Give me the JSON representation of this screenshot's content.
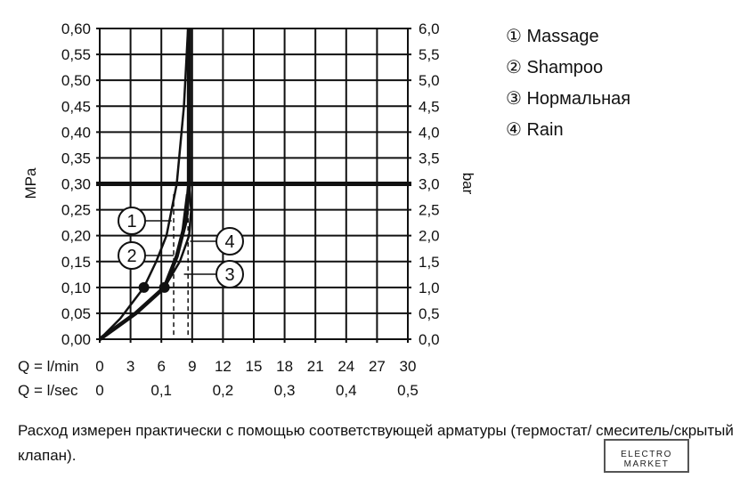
{
  "chart_data": {
    "type": "line",
    "ylabel_left": "MPa",
    "ylabel_right": "bar",
    "xlabel_lmin": "Q = l/min",
    "xlabel_lsec": "Q = l/sec",
    "xlim": [
      0,
      30
    ],
    "ylim": [
      0,
      0.6
    ],
    "x_ticks_lmin": [
      "0",
      "3",
      "6",
      "9",
      "12",
      "15",
      "18",
      "21",
      "24",
      "27",
      "30"
    ],
    "x_ticks_lsec": [
      "0",
      "0,1",
      "0,2",
      "0,3",
      "0,4",
      "0,5"
    ],
    "y_ticks_mpa": [
      "0,00",
      "0,05",
      "0,10",
      "0,15",
      "0,20",
      "0,25",
      "0,30",
      "0,35",
      "0,40",
      "0,45",
      "0,50",
      "0,55",
      "0,60"
    ],
    "y_ticks_bar": [
      "0,0",
      "0,5",
      "1,0",
      "1,5",
      "2,0",
      "2,5",
      "3,0",
      "3,5",
      "4,0",
      "4,5",
      "5,0",
      "5,5",
      "6,0"
    ],
    "grid": true,
    "reference_pressure_mpa": 0.3,
    "series": [
      {
        "name": "1",
        "points": [
          [
            0,
            0
          ],
          [
            2,
            0.04
          ],
          [
            4.3,
            0.1
          ],
          [
            5.5,
            0.15
          ],
          [
            6.5,
            0.2
          ],
          [
            7.5,
            0.3
          ],
          [
            8.2,
            0.45
          ],
          [
            8.6,
            0.6
          ]
        ]
      },
      {
        "name": "2",
        "points": [
          [
            0,
            0
          ],
          [
            3.5,
            0.05
          ],
          [
            6.3,
            0.1
          ],
          [
            7.3,
            0.15
          ],
          [
            8,
            0.2
          ],
          [
            8.5,
            0.28
          ]
        ]
      },
      {
        "name": "3",
        "points": [
          [
            6.3,
            0.1
          ],
          [
            7.8,
            0.15
          ],
          [
            8.7,
            0.2
          ],
          [
            8.9,
            0.25
          ],
          [
            8.7,
            0.3
          ]
        ]
      },
      {
        "name": "4",
        "points": [
          [
            0,
            0
          ],
          [
            3.5,
            0.05
          ],
          [
            6.3,
            0.1
          ],
          [
            7.5,
            0.16
          ],
          [
            8.4,
            0.23
          ],
          [
            8.7,
            0.3
          ],
          [
            8.7,
            0.6
          ]
        ]
      }
    ],
    "markers": [
      [
        4.3,
        0.1
      ],
      [
        6.3,
        0.1
      ]
    ],
    "dashed_x": [
      7.2,
      8.6
    ]
  },
  "legend": [
    "① Massage",
    "② Shampoo",
    "③ Нормальная",
    "④ Rain"
  ],
  "note": "Расход измерен практически с помощью соответствующей арматуры (термостат/ смеситель/скрытый клапан).",
  "watermark": "ELECTRO MARKET"
}
